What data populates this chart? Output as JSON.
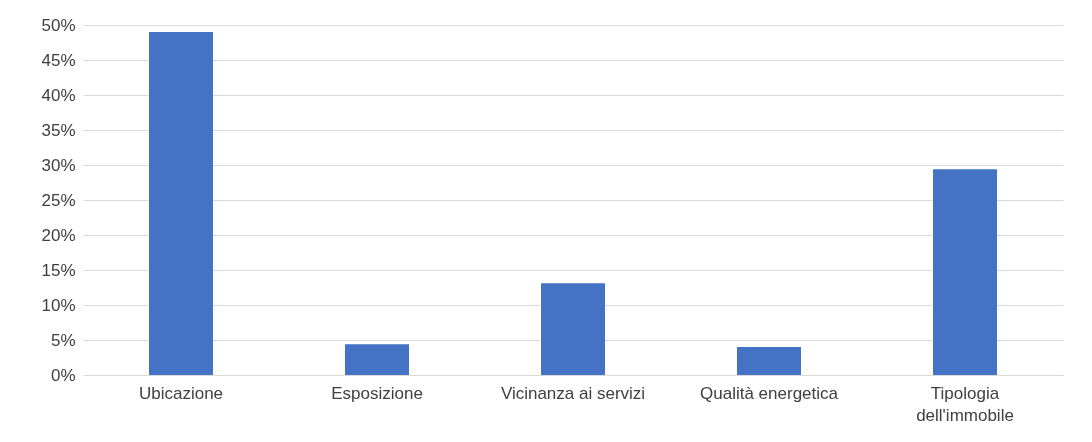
{
  "chart_data": {
    "type": "bar",
    "categories": [
      "Ubicazione",
      "Esposizione",
      "Vicinanza ai servizi",
      "Qualità energetica",
      "Tipologia dell'immobile"
    ],
    "values": [
      49.0,
      4.4,
      13.1,
      4.0,
      29.4
    ],
    "color": "#4472c4",
    "ylim": [
      0,
      50
    ],
    "yticks": [
      {
        "value": 0,
        "label": "0%"
      },
      {
        "value": 5,
        "label": "5%"
      },
      {
        "value": 10,
        "label": "10%"
      },
      {
        "value": 15,
        "label": "15%"
      },
      {
        "value": 20,
        "label": "20%"
      },
      {
        "value": 25,
        "label": "25%"
      },
      {
        "value": 30,
        "label": "30%"
      },
      {
        "value": 35,
        "label": "35%"
      },
      {
        "value": 40,
        "label": "40%"
      },
      {
        "value": 45,
        "label": "45%"
      },
      {
        "value": 50,
        "label": "50%"
      }
    ],
    "grid": "y"
  }
}
